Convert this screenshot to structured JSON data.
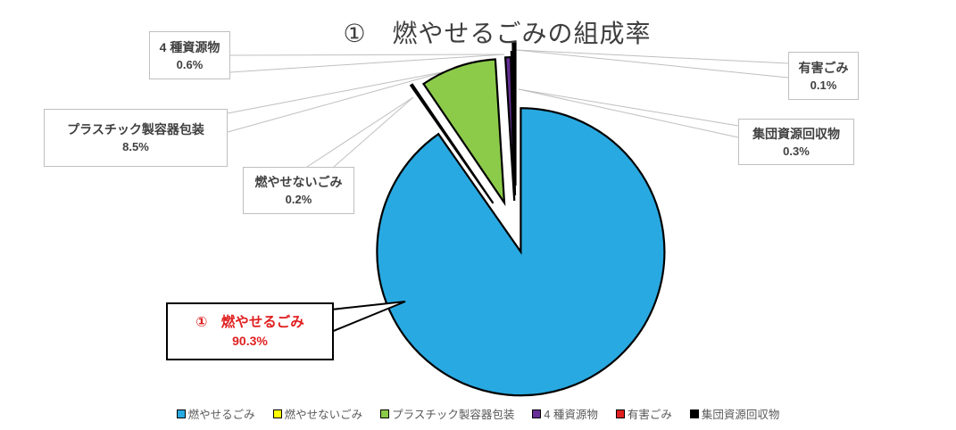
{
  "title": "①　燃やせるごみの組成率",
  "chart_data": {
    "type": "pie",
    "title": "①　燃やせるごみの組成率",
    "unit": "%",
    "start_angle_deg": 0,
    "direction": "clockwise",
    "legend_position": "bottom",
    "segments": [
      {
        "label": "燃やせるごみ",
        "value": 90.3,
        "color": "#29a9e1",
        "explode": 18
      },
      {
        "label": "燃やせないごみ",
        "value": 0.2,
        "color": "#ffff00",
        "explode": 45
      },
      {
        "label": "プラスチック製容器包装",
        "value": 8.5,
        "color": "#8ccb4a",
        "explode": 40
      },
      {
        "label": "4 種資源物",
        "value": 0.6,
        "color": "#652f95",
        "explode": 40
      },
      {
        "label": "有害ごみ",
        "value": 0.1,
        "color": "#e02020",
        "explode": 46
      },
      {
        "label": "集団資源回収物",
        "value": 0.3,
        "color": "#000000",
        "explode": 57
      }
    ]
  },
  "callouts": {
    "shigen": {
      "name": "4 種資源物",
      "pct": "0.6%"
    },
    "plastic": {
      "name": "プラスチック製容器包装",
      "pct": "8.5%"
    },
    "moyasenai": {
      "name": "燃やせないごみ",
      "pct": "0.2%"
    },
    "yugai": {
      "name": "有害ごみ",
      "pct": "0.1%"
    },
    "shudan": {
      "name": "集団資源回収物",
      "pct": "0.3%"
    },
    "main": {
      "name": "①　燃やせるごみ",
      "pct": "90.3%",
      "color": "#e02020"
    }
  },
  "colors": {
    "title_text": "#3f3f3f",
    "label_text": "#404040",
    "legend_text": "#595959",
    "box_border": "#bfbfbf",
    "leader_line": "#bfbfbf",
    "slice_outline": "#000000"
  }
}
